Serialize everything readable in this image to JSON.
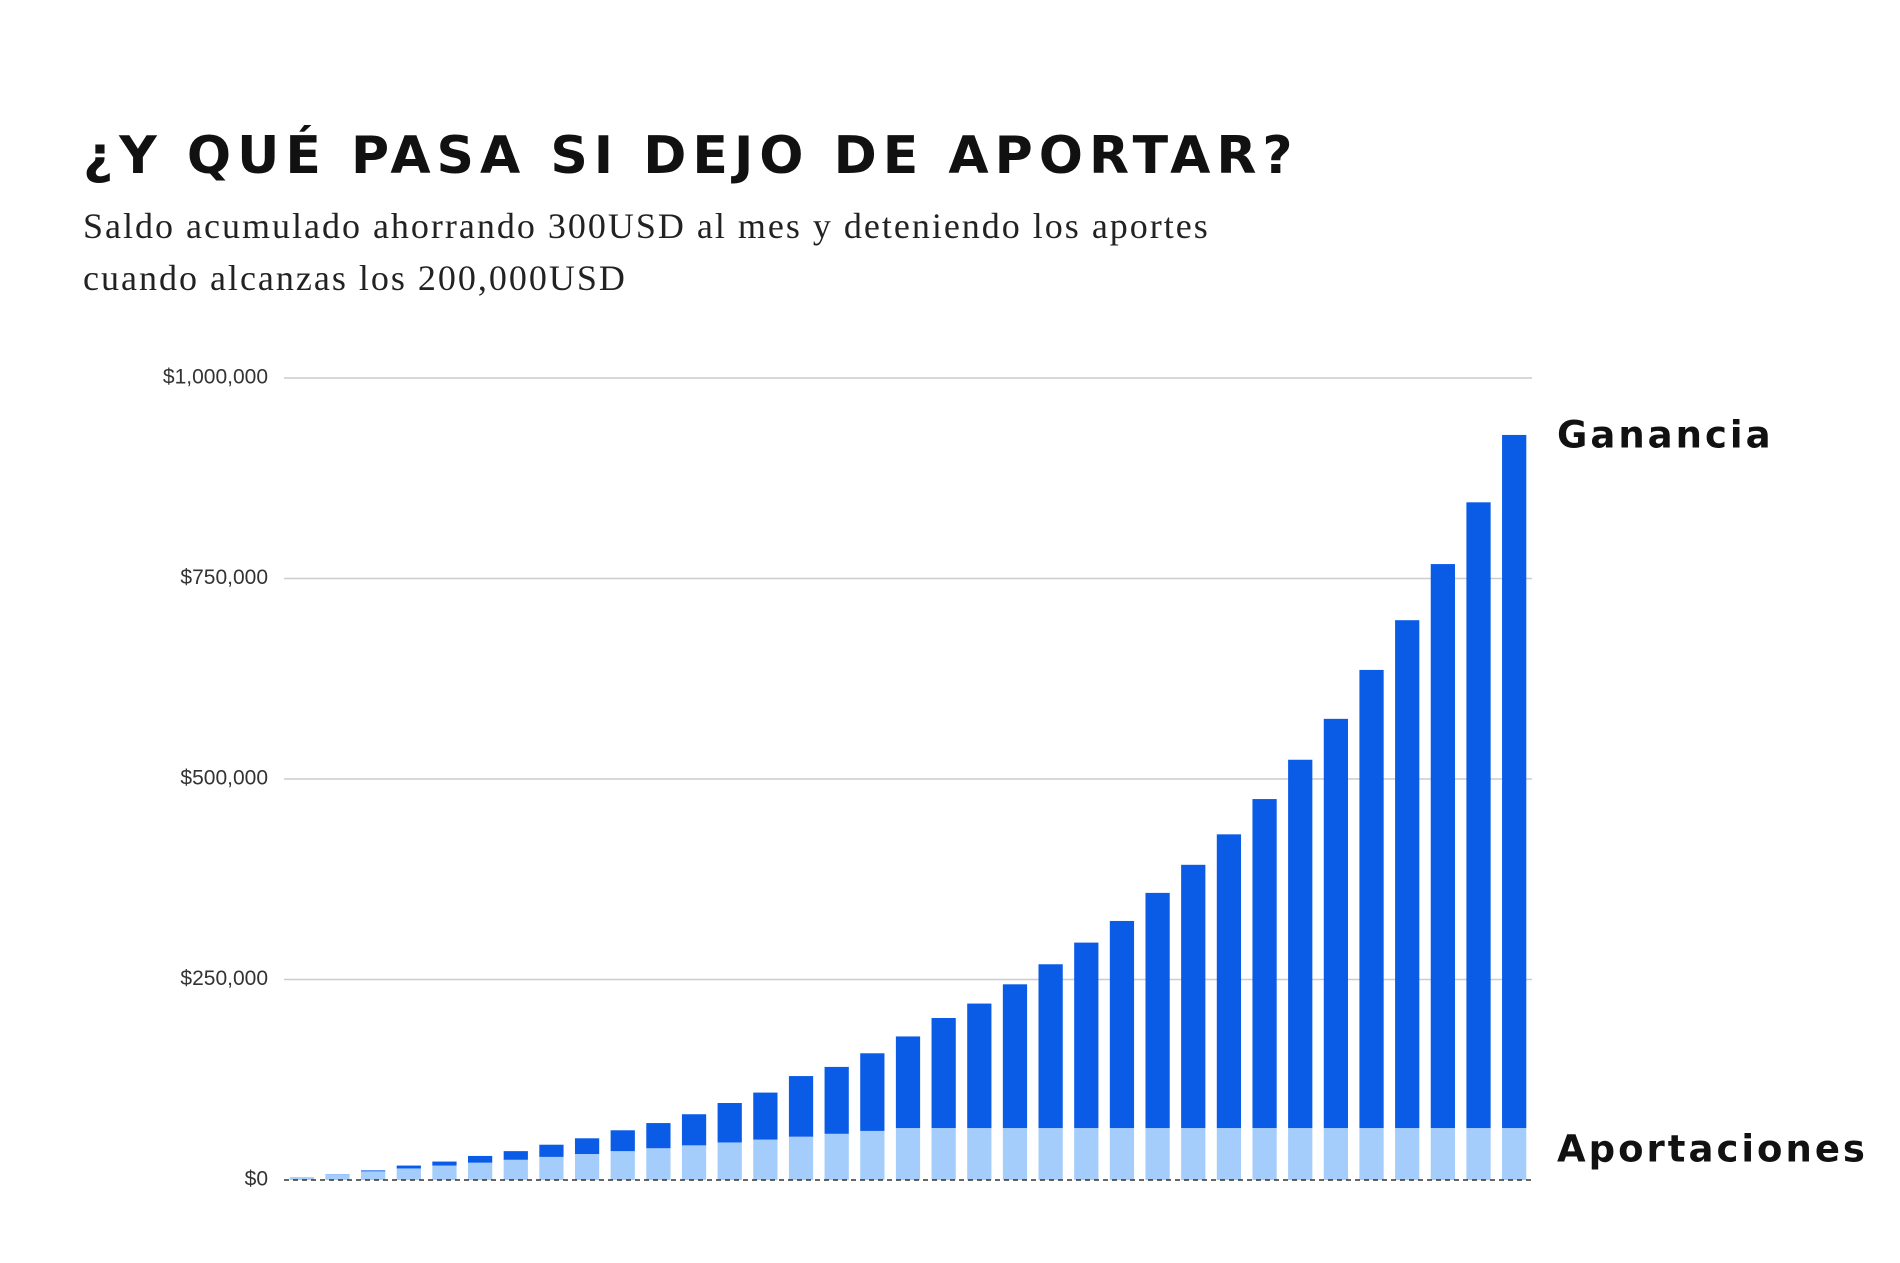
{
  "chart_data": {
    "type": "stacked_bar",
    "title": "¿Y QUÉ PASA SI DEJO DE APORTAR?",
    "subtitle": [
      "Saldo acumulado ahorrando 300USD al mes y deteniendo los aportes",
      "cuando alcanzas los 200,000USD"
    ],
    "categories": [
      null,
      null,
      null,
      null,
      null,
      null,
      null,
      null,
      null,
      null,
      null,
      null,
      null,
      null,
      null,
      null,
      null,
      null,
      null,
      null,
      null,
      null,
      null,
      null,
      null,
      null,
      null,
      null,
      null,
      null,
      null,
      null,
      null,
      null,
      null
    ],
    "series": [
      {
        "name": "Aportaciones",
        "color": "#a4cdfb",
        "values": [
          3600,
          7200,
          10800,
          14400,
          18000,
          21600,
          25200,
          28800,
          32400,
          36000,
          39600,
          43200,
          46800,
          50400,
          54000,
          57600,
          61200,
          64800,
          64800,
          64800,
          64800,
          64800,
          64800,
          64800,
          64800,
          64800,
          64800,
          64800,
          64800,
          64800,
          64800,
          64800,
          64800,
          64800,
          64800
        ]
      },
      {
        "name": "Ganancia",
        "color": "#0a5ce6",
        "values": [
          0,
          200,
          1200,
          3600,
          5000,
          8400,
          10800,
          15200,
          19600,
          26000,
          31400,
          38800,
          49200,
          58600,
          75600,
          83400,
          96800,
          114200,
          137200,
          155200,
          179200,
          204200,
          231200,
          258200,
          293200,
          328200,
          366200,
          410200,
          459200,
          510200,
          571200,
          633200,
          703200,
          780200,
          864200
        ]
      }
    ],
    "ylim": [
      0,
      1000000
    ],
    "yticks": [
      {
        "value": 0,
        "label": "$0"
      },
      {
        "value": 250000,
        "label": "$250,000"
      },
      {
        "value": 500000,
        "label": "$500,000"
      },
      {
        "value": 750000,
        "label": "$750,000"
      },
      {
        "value": 1000000,
        "label": "$1,000,000"
      }
    ],
    "grid": true
  }
}
